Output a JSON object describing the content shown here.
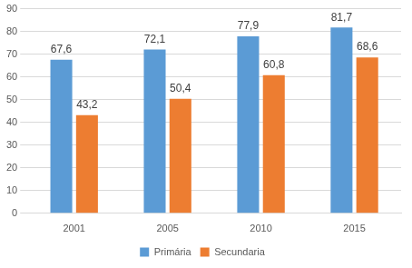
{
  "chart_data": {
    "type": "bar",
    "categories": [
      "2001",
      "2005",
      "2010",
      "2015"
    ],
    "series": [
      {
        "name": "Primária",
        "color": "#5b9bd5",
        "values": [
          67.6,
          72.1,
          77.9,
          81.7
        ],
        "value_labels": [
          "67,6",
          "72,1",
          "77,9",
          "81,7"
        ]
      },
      {
        "name": "Secundaria",
        "color": "#ed7d31",
        "values": [
          43.2,
          50.4,
          60.8,
          68.6
        ],
        "value_labels": [
          "43,2",
          "50,4",
          "60,8",
          "68,6"
        ]
      }
    ],
    "ylim": [
      0,
      90
    ],
    "yticks": [
      0,
      10,
      20,
      30,
      40,
      50,
      60,
      70,
      80,
      90
    ],
    "grid": true,
    "legend": "bottom",
    "data_labels": true
  }
}
